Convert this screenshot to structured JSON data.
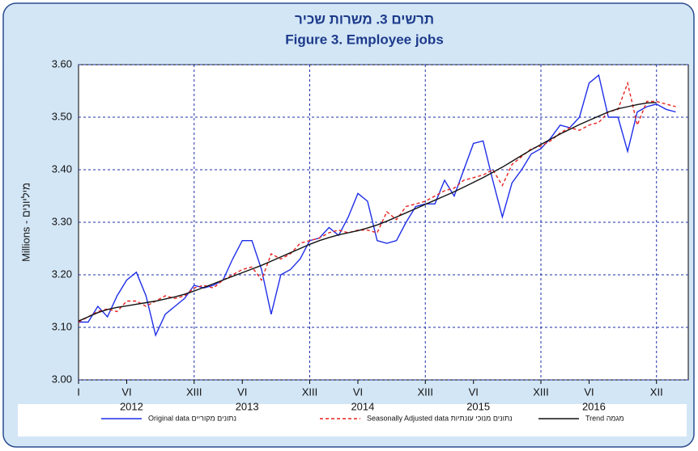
{
  "chart_data": {
    "type": "line",
    "title": "תרשים 3. משרות שכיר",
    "subtitle": "Figure 3. Employee jobs",
    "y_label": "Millions - מיליונים",
    "x": [
      1,
      2,
      3,
      4,
      5,
      6,
      7,
      8,
      9,
      10,
      11,
      12,
      13,
      14,
      15,
      16,
      17,
      18,
      19,
      20,
      21,
      22,
      23,
      24,
      25,
      26,
      27,
      28,
      29,
      30,
      31,
      32,
      33,
      34,
      35,
      36,
      37,
      38,
      39,
      40,
      41,
      42,
      43,
      44,
      45,
      46,
      47,
      48,
      49,
      50,
      51,
      52,
      53,
      54,
      55,
      56,
      57,
      58,
      59,
      60,
      61,
      62,
      63
    ],
    "xlim": [
      1,
      64.3
    ],
    "xticks": [
      {
        "value": 1,
        "label": "I"
      },
      {
        "value": 6,
        "label": "VI"
      },
      {
        "value": 13,
        "label": "XIII"
      },
      {
        "value": 18,
        "label": "VI"
      },
      {
        "value": 25,
        "label": "XIII"
      },
      {
        "value": 30,
        "label": "VI"
      },
      {
        "value": 37,
        "label": "XIII"
      },
      {
        "value": 42,
        "label": "VI"
      },
      {
        "value": 49,
        "label": "XIII"
      },
      {
        "value": 54,
        "label": "VI"
      },
      {
        "value": 61,
        "label": "XII"
      }
    ],
    "xgrid": [
      13,
      25,
      37,
      49,
      61
    ],
    "x_groups": [
      {
        "value": 6.5,
        "label": "2012"
      },
      {
        "value": 18.5,
        "label": "2013"
      },
      {
        "value": 30.5,
        "label": "2014"
      },
      {
        "value": 42.5,
        "label": "2015"
      },
      {
        "value": 54.5,
        "label": "2016"
      }
    ],
    "ylim": [
      3.0,
      3.6
    ],
    "yticks": [
      {
        "value": 3.0,
        "label": "3.00"
      },
      {
        "value": 3.1,
        "label": "3.10"
      },
      {
        "value": 3.2,
        "label": "3.20"
      },
      {
        "value": 3.3,
        "label": "3.30"
      },
      {
        "value": 3.4,
        "label": "3.40"
      },
      {
        "value": 3.5,
        "label": "3.50"
      },
      {
        "value": 3.6,
        "label": "3.60"
      }
    ],
    "grid": true,
    "series": [
      {
        "name": "Original data נתונים מקוריים",
        "color": "#1f2ee8",
        "dash": "none",
        "values": [
          3.11,
          3.11,
          3.14,
          3.12,
          3.16,
          3.19,
          3.205,
          3.16,
          3.085,
          3.125,
          3.14,
          3.155,
          3.18,
          3.175,
          3.18,
          3.19,
          3.23,
          3.265,
          3.265,
          3.21,
          3.125,
          3.2,
          3.21,
          3.23,
          3.265,
          3.27,
          3.29,
          3.275,
          3.31,
          3.355,
          3.34,
          3.265,
          3.26,
          3.265,
          3.3,
          3.33,
          3.335,
          3.335,
          3.38,
          3.35,
          3.4,
          3.45,
          3.455,
          3.38,
          3.31,
          3.375,
          3.4,
          3.43,
          3.44,
          3.46,
          3.485,
          3.48,
          3.5,
          3.565,
          3.58,
          3.5,
          3.5,
          3.435,
          3.51,
          3.52,
          3.525,
          3.515,
          3.51
        ]
      },
      {
        "name": "Seasonally Adjusted data נתונים מנוכי עונתיות",
        "color": "#e8231f",
        "dash": "4 3",
        "values": [
          3.11,
          3.12,
          3.13,
          3.135,
          3.13,
          3.15,
          3.15,
          3.14,
          3.15,
          3.16,
          3.155,
          3.16,
          3.175,
          3.18,
          3.175,
          3.19,
          3.2,
          3.21,
          3.215,
          3.19,
          3.24,
          3.23,
          3.24,
          3.26,
          3.265,
          3.27,
          3.28,
          3.285,
          3.28,
          3.285,
          3.285,
          3.28,
          3.32,
          3.305,
          3.33,
          3.335,
          3.34,
          3.35,
          3.36,
          3.365,
          3.38,
          3.385,
          3.39,
          3.4,
          3.37,
          3.41,
          3.425,
          3.44,
          3.445,
          3.455,
          3.47,
          3.48,
          3.475,
          3.485,
          3.49,
          3.51,
          3.515,
          3.565,
          3.485,
          3.53,
          3.53,
          3.525,
          3.52
        ]
      },
      {
        "name": "Trend מגמה",
        "color": "#111111",
        "dash": "none",
        "values": [
          3.112,
          3.12,
          3.128,
          3.134,
          3.138,
          3.141,
          3.144,
          3.147,
          3.15,
          3.154,
          3.158,
          3.163,
          3.169,
          3.176,
          3.183,
          3.19,
          3.197,
          3.204,
          3.211,
          3.218,
          3.226,
          3.234,
          3.242,
          3.25,
          3.258,
          3.265,
          3.271,
          3.276,
          3.28,
          3.284,
          3.289,
          3.295,
          3.302,
          3.31,
          3.318,
          3.326,
          3.334,
          3.342,
          3.35,
          3.358,
          3.367,
          3.376,
          3.385,
          3.395,
          3.405,
          3.416,
          3.427,
          3.438,
          3.448,
          3.458,
          3.468,
          3.477,
          3.486,
          3.494,
          3.502,
          3.51,
          3.516,
          3.52,
          3.524,
          3.527,
          3.528,
          null,
          null
        ]
      }
    ]
  }
}
